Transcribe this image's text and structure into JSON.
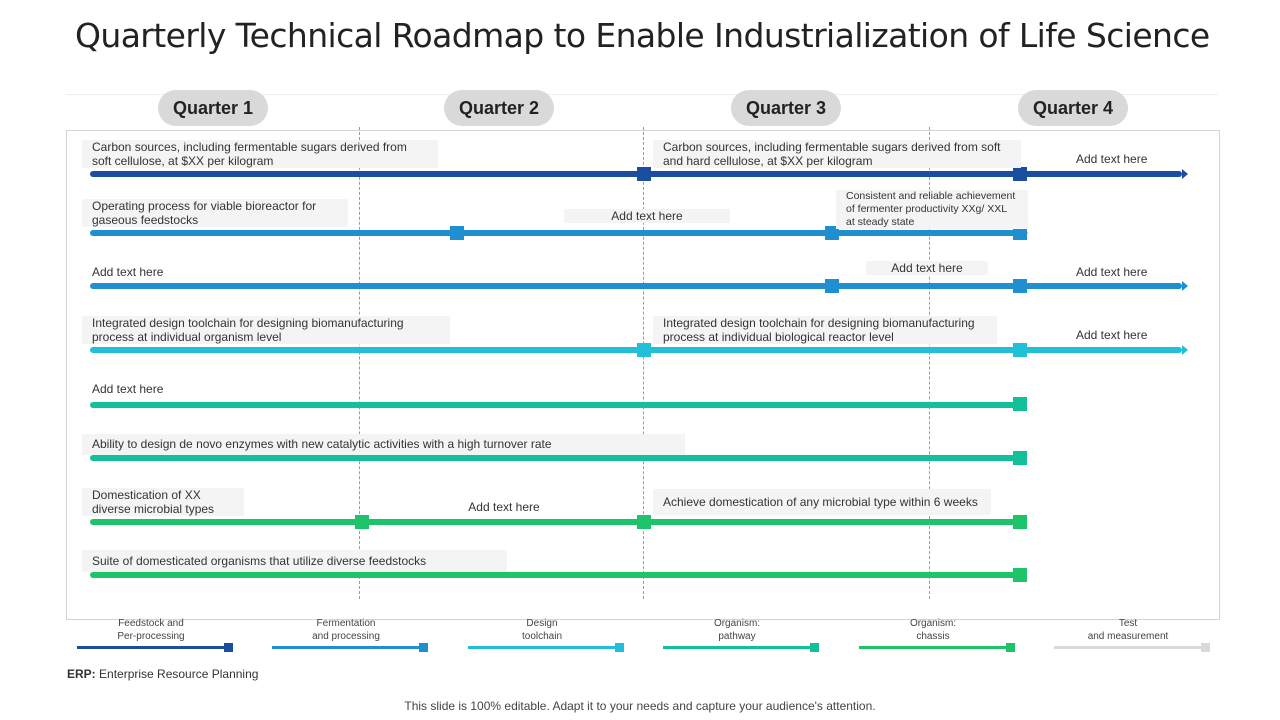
{
  "title": "Quarterly Technical Roadmap to Enable Industrialization of Life Science",
  "quarters": [
    "Quarter 1",
    "Quarter 2",
    "Quarter 3",
    "Quarter 4"
  ],
  "colors": {
    "feedstock": "#1b4ea0",
    "fermentation": "#1f8fd0",
    "design": "#22c0d8",
    "pathway": "#14c09a",
    "chassis": "#1dc46a",
    "test": "#d9d9d9"
  },
  "lanes": [
    {
      "color": "feedstock",
      "labels": [
        "Carbon sources, including fermentable sugars derived from soft cellulose, at $XX  per kilogram",
        "Carbon sources, including fermentable sugars derived from soft and hard cellulose, at $XX  per kilogram",
        "Add text here"
      ]
    },
    {
      "color": "fermentation",
      "labels": [
        "Operating process for viable bioreactor for gaseous feedstocks",
        "Add text here",
        "Consistent and reliable achievement of fermenter productivity XXg/ XXL at steady state"
      ]
    },
    {
      "color": "fermentation",
      "labels": [
        "Add text here",
        "Add text here",
        "Add text here"
      ]
    },
    {
      "color": "design",
      "labels": [
        "Integrated design toolchain for designing biomanufacturing process at individual organism level",
        "Integrated design toolchain for designing biomanufacturing process at individual biological reactor level",
        "Add text here"
      ]
    },
    {
      "color": "pathway",
      "labels": [
        "Add text here"
      ]
    },
    {
      "color": "pathway",
      "labels": [
        "Ability to design de novo enzymes with new catalytic activities with a high turnover rate"
      ]
    },
    {
      "color": "chassis",
      "labels": [
        "Domestication of XX diverse microbial types",
        "Add text here",
        "Achieve domestication of any microbial type within 6 weeks"
      ]
    },
    {
      "color": "chassis",
      "labels": [
        "Suite of domesticated organisms that utilize diverse feedstocks"
      ]
    }
  ],
  "legend": [
    {
      "label": "Feedstock and\nPer-processing",
      "color": "feedstock"
    },
    {
      "label": "Fermentation\nand processing",
      "color": "fermentation"
    },
    {
      "label": "Design\ntoolchain",
      "color": "design"
    },
    {
      "label": "Organism:\npathway",
      "color": "pathway"
    },
    {
      "label": "Organism:\nchassis",
      "color": "chassis"
    },
    {
      "label": "Test\nand measurement",
      "color": "test"
    }
  ],
  "footnote": {
    "abbr": "ERP:",
    "text": "Enterprise Resource Planning"
  },
  "footer": "This slide is 100% editable. Adapt it to your needs and capture your audience's attention."
}
